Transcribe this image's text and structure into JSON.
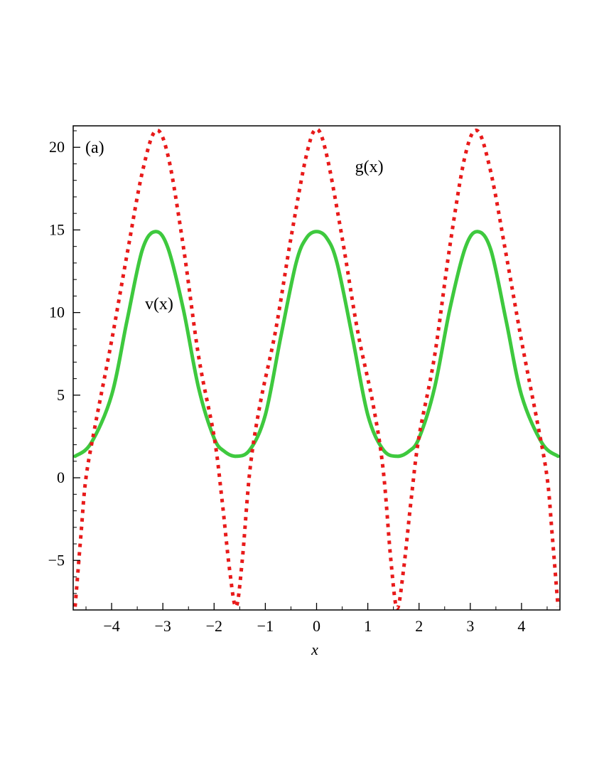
{
  "chart_data": {
    "type": "line",
    "panel_label": "(a)",
    "xlabel": "x",
    "ylabel": "",
    "xlim": [
      -4.75,
      4.75
    ],
    "ylim": [
      -8,
      21.3
    ],
    "x_ticks": [
      -4,
      -3,
      -2,
      -1,
      0,
      1,
      2,
      3,
      4
    ],
    "x_tick_labels": [
      "−4",
      "−3",
      "−2",
      "−1",
      "0",
      "1",
      "2",
      "3",
      "4"
    ],
    "y_ticks": [
      -5,
      0,
      5,
      10,
      15,
      20
    ],
    "y_tick_labels": [
      "−5",
      "0",
      "5",
      "10",
      "15",
      "20"
    ],
    "grid": false,
    "series": [
      {
        "name": "v(x)",
        "color": "#3ec93e",
        "style": "solid",
        "x": [
          -4.712,
          -4.4,
          -4.0,
          -3.7,
          -3.4,
          -3.1416,
          -2.9,
          -2.6,
          -2.3,
          -2.0,
          -1.8,
          -1.5708,
          -1.3,
          -1.0,
          -0.7,
          -0.4,
          -0.2,
          0.0,
          0.2,
          0.4,
          0.7,
          1.0,
          1.3,
          1.5708,
          1.8,
          2.0,
          2.3,
          2.6,
          2.9,
          3.1416,
          3.4,
          3.7,
          4.0,
          4.4,
          4.712
        ],
        "y": [
          1.3,
          2.1,
          5.0,
          9.5,
          13.8,
          14.9,
          13.9,
          10.2,
          5.4,
          2.4,
          1.6,
          1.3,
          1.7,
          3.8,
          8.5,
          13.0,
          14.5,
          14.9,
          14.5,
          13.0,
          8.5,
          3.8,
          1.7,
          1.3,
          1.6,
          2.4,
          5.4,
          10.2,
          13.9,
          14.9,
          13.8,
          9.5,
          5.0,
          2.1,
          1.3
        ]
      },
      {
        "name": "g(x)",
        "color": "#e81a1a",
        "style": "dotted",
        "x": [
          -4.712,
          -4.6,
          -4.5,
          -4.3,
          -4.0,
          -3.7,
          -3.4,
          -3.1416,
          -2.9,
          -2.6,
          -2.3,
          -2.0,
          -1.85,
          -1.7,
          -1.5708,
          -1.45,
          -1.3,
          -1.1,
          -0.8,
          -0.5,
          -0.2,
          0.0,
          0.2,
          0.5,
          0.8,
          1.1,
          1.3,
          1.45,
          1.5708,
          1.7,
          1.85,
          2.0,
          2.3,
          2.6,
          2.9,
          3.1416,
          3.4,
          3.7,
          4.0,
          4.3,
          4.5,
          4.6,
          4.712
        ],
        "y": [
          -7.8,
          -3.5,
          0.0,
          3.5,
          8.3,
          13.5,
          18.5,
          21.0,
          19.5,
          14.0,
          7.3,
          2.5,
          -1.2,
          -5.5,
          -7.8,
          -5.0,
          0.5,
          4.5,
          8.9,
          14.5,
          19.5,
          21.1,
          19.5,
          14.5,
          8.9,
          4.5,
          0.5,
          -5.0,
          -7.9,
          -5.5,
          -1.2,
          2.5,
          7.3,
          14.0,
          19.5,
          21.0,
          18.5,
          13.5,
          8.3,
          3.5,
          0.0,
          -3.5,
          -7.8
        ]
      }
    ],
    "annotations": [
      {
        "text": "v(x)",
        "x": -3.35,
        "y": 10.2
      },
      {
        "text": "g(x)",
        "x": 0.75,
        "y": 18.5
      }
    ]
  }
}
